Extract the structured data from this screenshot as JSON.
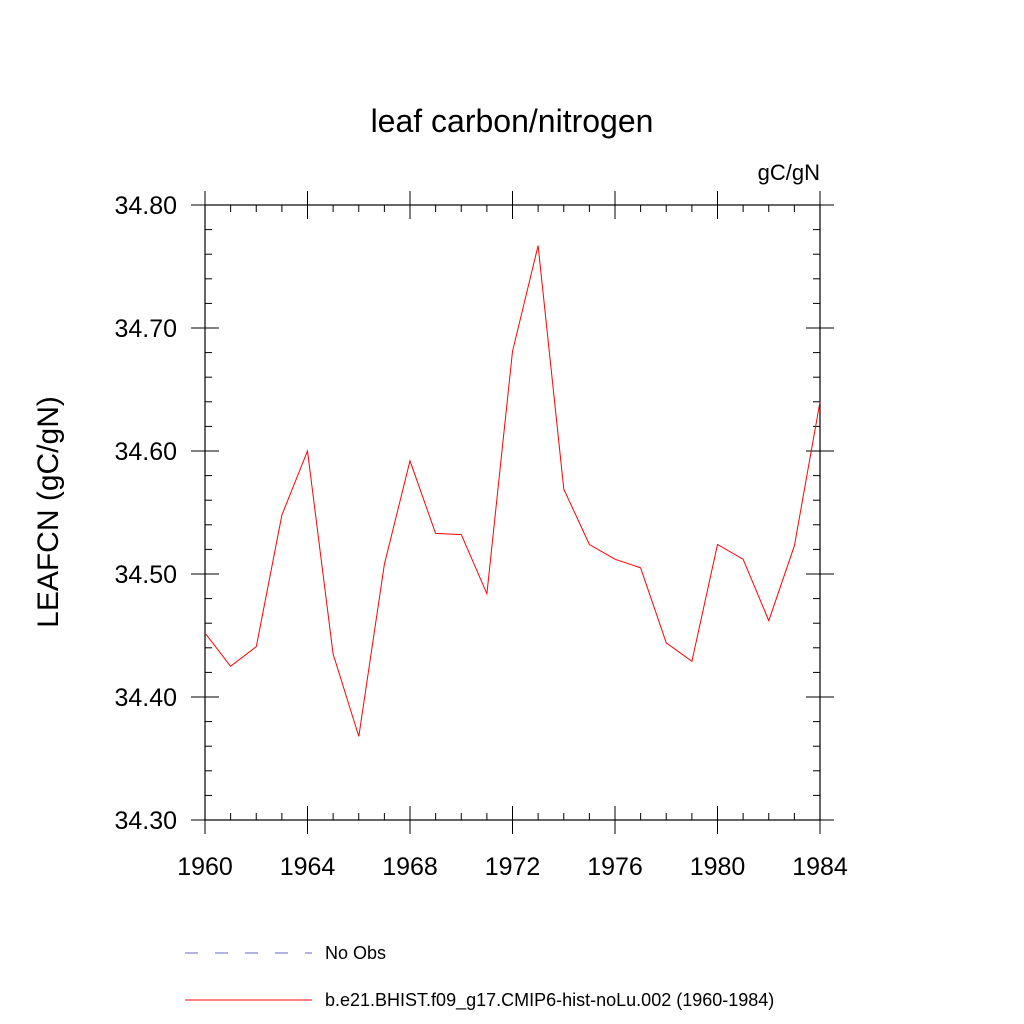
{
  "chart_data": {
    "type": "line",
    "title": "leaf carbon/nitrogen",
    "units": "gC/gN",
    "ylabel": "LEAFCN  (gC/gN)",
    "xlabel": "",
    "xlim": [
      1960,
      1984
    ],
    "ylim": [
      34.3,
      34.8
    ],
    "x_ticks": [
      "1960",
      "1964",
      "1968",
      "1972",
      "1976",
      "1980",
      "1984"
    ],
    "y_ticks": [
      "34.30",
      "34.40",
      "34.50",
      "34.60",
      "34.70",
      "34.80"
    ],
    "grid": false,
    "legend_position": "bottom",
    "series": [
      {
        "name": "b.e21.BHIST.f09_g17.CMIP6-hist-noLu.002 (1960-1984)",
        "color": "#ff0000",
        "style": "solid",
        "x": [
          1960,
          1961,
          1962,
          1963,
          1964,
          1965,
          1966,
          1967,
          1968,
          1969,
          1970,
          1971,
          1972,
          1973,
          1974,
          1975,
          1976,
          1977,
          1978,
          1979,
          1980,
          1981,
          1982,
          1983,
          1984
        ],
        "y": [
          34.452,
          34.425,
          34.441,
          34.548,
          34.6,
          34.435,
          34.368,
          34.508,
          34.592,
          34.533,
          34.532,
          34.484,
          34.681,
          34.767,
          34.569,
          34.524,
          34.512,
          34.505,
          34.444,
          34.429,
          34.524,
          34.512,
          34.462,
          34.523,
          34.64
        ]
      }
    ],
    "legend": [
      {
        "label": "No Obs",
        "color": "#6666cc",
        "style": "dashed"
      },
      {
        "label": "b.e21.BHIST.f09_g17.CMIP6-hist-noLu.002 (1960-1984)",
        "color": "#ff0000",
        "style": "solid"
      }
    ]
  }
}
